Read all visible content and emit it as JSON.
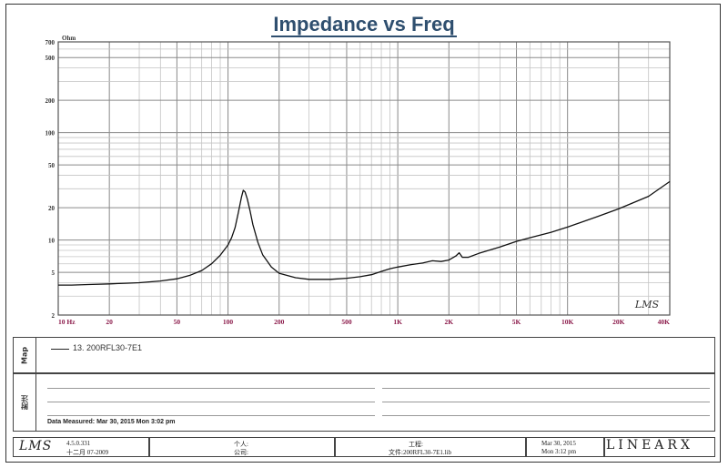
{
  "chart_data": {
    "type": "line",
    "title": "Impedance vs Freq",
    "y_unit": "Ohm",
    "x_scale": "log",
    "y_scale": "log",
    "xlim": [
      10,
      40000
    ],
    "ylim": [
      2,
      700
    ],
    "x_ticks": [
      {
        "value": 10,
        "label": "10 Hz"
      },
      {
        "value": 20,
        "label": "20"
      },
      {
        "value": 50,
        "label": "50"
      },
      {
        "value": 100,
        "label": "100"
      },
      {
        "value": 200,
        "label": "200"
      },
      {
        "value": 500,
        "label": "500"
      },
      {
        "value": 1000,
        "label": "1K"
      },
      {
        "value": 2000,
        "label": "2K"
      },
      {
        "value": 5000,
        "label": "5K"
      },
      {
        "value": 10000,
        "label": "10K"
      },
      {
        "value": 20000,
        "label": "20K"
      },
      {
        "value": 40000,
        "label": "40K"
      }
    ],
    "y_ticks": [
      {
        "value": 700,
        "label": "700"
      },
      {
        "value": 500,
        "label": "500"
      },
      {
        "value": 200,
        "label": "200"
      },
      {
        "value": 100,
        "label": "100"
      },
      {
        "value": 50,
        "label": "50"
      },
      {
        "value": 20,
        "label": "20"
      },
      {
        "value": 10,
        "label": "10"
      },
      {
        "value": 5,
        "label": "5"
      },
      {
        "value": 2,
        "label": "2"
      }
    ],
    "grid": true,
    "watermark": "LMS",
    "series": [
      {
        "name": "13. 200RFL30-7E1",
        "color": "#111111",
        "points": [
          [
            10,
            3.8
          ],
          [
            12,
            3.8
          ],
          [
            15,
            3.85
          ],
          [
            20,
            3.9
          ],
          [
            25,
            3.95
          ],
          [
            30,
            4.0
          ],
          [
            40,
            4.15
          ],
          [
            50,
            4.35
          ],
          [
            60,
            4.7
          ],
          [
            70,
            5.2
          ],
          [
            80,
            6.0
          ],
          [
            90,
            7.2
          ],
          [
            100,
            9.0
          ],
          [
            105,
            10.5
          ],
          [
            110,
            13.0
          ],
          [
            115,
            18.0
          ],
          [
            120,
            25.0
          ],
          [
            123,
            29.0
          ],
          [
            126,
            28.0
          ],
          [
            130,
            24.0
          ],
          [
            135,
            18.5
          ],
          [
            140,
            14.0
          ],
          [
            150,
            9.5
          ],
          [
            160,
            7.3
          ],
          [
            180,
            5.6
          ],
          [
            200,
            4.9
          ],
          [
            250,
            4.45
          ],
          [
            300,
            4.3
          ],
          [
            400,
            4.3
          ],
          [
            500,
            4.4
          ],
          [
            600,
            4.55
          ],
          [
            700,
            4.75
          ],
          [
            800,
            5.1
          ],
          [
            900,
            5.4
          ],
          [
            1000,
            5.6
          ],
          [
            1200,
            5.9
          ],
          [
            1400,
            6.1
          ],
          [
            1600,
            6.4
          ],
          [
            1800,
            6.3
          ],
          [
            2000,
            6.5
          ],
          [
            2200,
            7.1
          ],
          [
            2300,
            7.6
          ],
          [
            2400,
            6.9
          ],
          [
            2600,
            6.9
          ],
          [
            3000,
            7.5
          ],
          [
            4000,
            8.6
          ],
          [
            5000,
            9.7
          ],
          [
            6000,
            10.5
          ],
          [
            8000,
            11.8
          ],
          [
            10000,
            13.2
          ],
          [
            15000,
            16.5
          ],
          [
            20000,
            19.5
          ],
          [
            30000,
            25.5
          ],
          [
            40000,
            35.0
          ]
        ]
      }
    ]
  },
  "panels": {
    "map_tab": "Map",
    "notes_tab": "附注",
    "legend_label": "13. 200RFL30-7E1",
    "measured": "Data Measured: Mar 30, 2015  Mon  3:02 pm"
  },
  "footer": {
    "logo": "LMS",
    "version": "4.5.0.331",
    "version_date": "十二月 07-2009",
    "person_label": "个人:",
    "company_label": "公司:",
    "project_label": "工程:",
    "file_label": "文件:200RFL30-7E1.lib",
    "date": "Mar 30, 2015",
    "time": "Mon  3:12 pm",
    "brand": "LINEARX"
  }
}
